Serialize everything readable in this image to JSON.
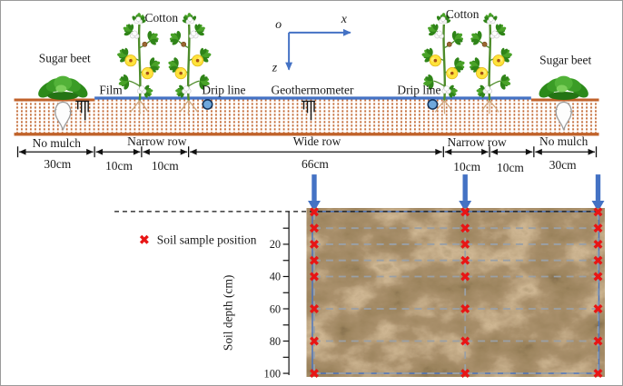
{
  "figure": {
    "type": "field-cross-section-diagram",
    "surface": {
      "crops": {
        "sugar_beet_left": "Sugar beet",
        "cotton_left": "Cotton",
        "cotton_right": "Cotton",
        "sugar_beet_right": "Sugar beet"
      },
      "features": {
        "film": "Film",
        "drip_line_left": "Drip line",
        "geothermometer": "Geothermometer",
        "drip_line_right": "Drip line"
      },
      "axes": {
        "origin": "o",
        "x": "x",
        "z": "z"
      },
      "rows": {
        "labels": [
          "No mulch",
          "Narrow row",
          "Wide row",
          "Narrow row",
          "No mulch"
        ],
        "widths": [
          "30cm",
          "10cm",
          "10cm",
          "66cm",
          "10cm",
          "10cm",
          "30cm"
        ]
      }
    },
    "profile": {
      "legend": "Soil sample position",
      "axis_label": "Soil depth (cm)",
      "tick_labels": [
        "20",
        "40",
        "60",
        "80",
        "100"
      ],
      "sample_depths_cm": [
        0,
        10,
        20,
        30,
        40,
        60,
        80,
        100
      ],
      "sample_columns": 3,
      "grid_depths_cm": [
        10,
        20,
        30,
        40,
        60,
        80,
        100
      ]
    },
    "colors": {
      "axis_blue": "#4472c4",
      "soil_orange": "#c0622a",
      "marker_red": "#e81515",
      "grid_gray": "#9aa0a6"
    }
  }
}
